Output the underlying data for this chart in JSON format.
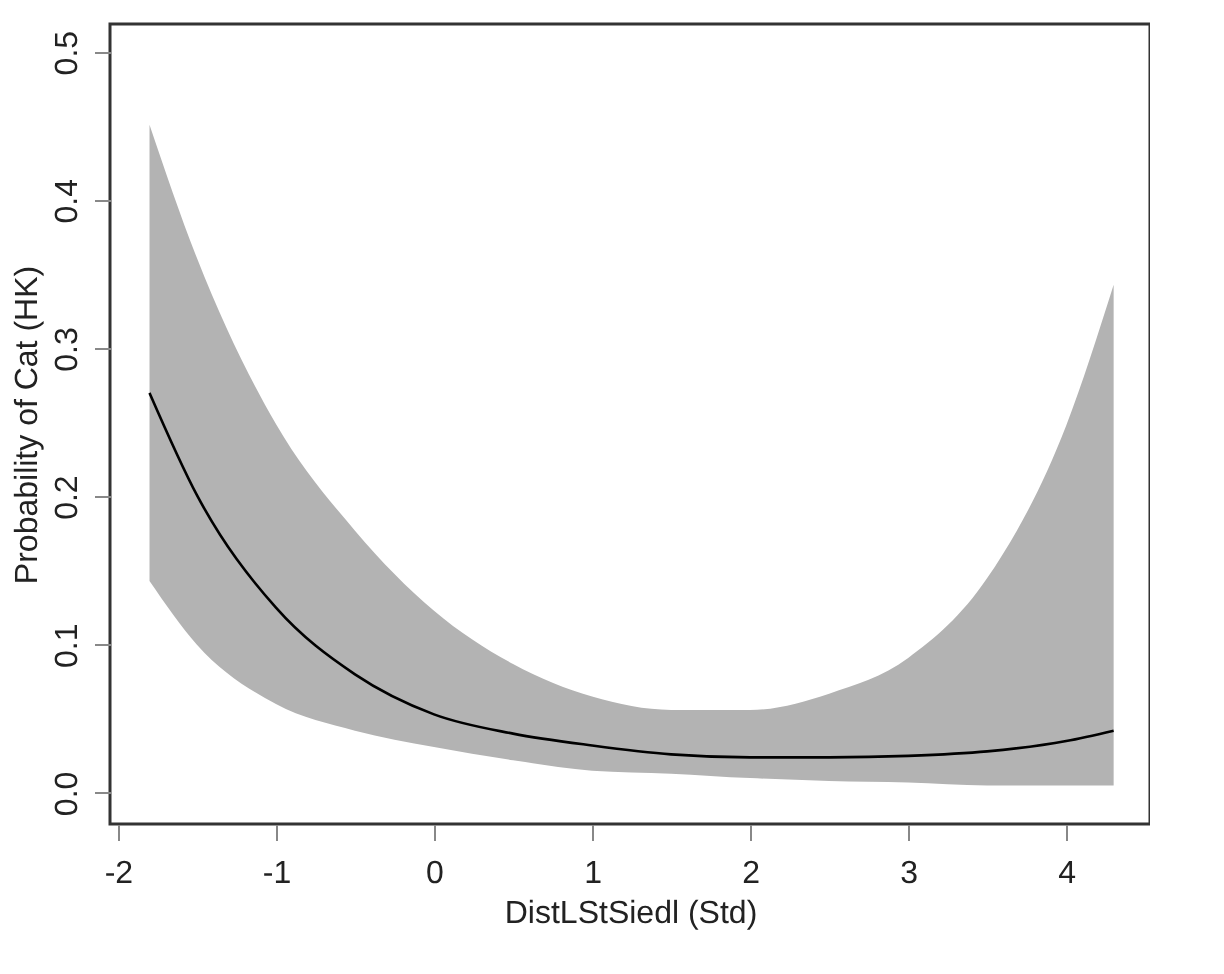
{
  "chart_data": {
    "type": "line",
    "xlabel": "DistLStSiedl (Std)",
    "ylabel": "Probability of Cat (HK)",
    "x": [
      -1.8,
      -1.5,
      -1.0,
      -0.5,
      0,
      0.5,
      1,
      1.5,
      2,
      2.5,
      3,
      3.5,
      4,
      4.3
    ],
    "series": [
      {
        "color": "#000000",
        "values": [
          0.27,
          0.201,
          0.125,
          0.08,
          0.053,
          0.04,
          0.032,
          0.026,
          0.024,
          0.024,
          0.025,
          0.028,
          0.035,
          0.042
        ],
        "lower": [
          0.143,
          0.1,
          0.06,
          0.042,
          0.031,
          0.022,
          0.015,
          0.013,
          0.01,
          0.008,
          0.007,
          0.005,
          0.005,
          0.005
        ],
        "upper": [
          0.451,
          0.361,
          0.249,
          0.177,
          0.123,
          0.087,
          0.065,
          0.056,
          0.056,
          0.067,
          0.091,
          0.145,
          0.248,
          0.343
        ]
      }
    ],
    "xlim": [
      -2.05,
      4.53
    ],
    "ylim": [
      -0.021,
      0.519
    ],
    "xticks": [
      -2,
      -1,
      0,
      1,
      2,
      3,
      4
    ],
    "yticks": [
      {
        "value": 0,
        "label": "0.0"
      },
      0.1,
      0.2,
      0.3,
      0.4,
      0.5
    ],
    "grid": false,
    "marker": "none",
    "line_style": "solid"
  }
}
